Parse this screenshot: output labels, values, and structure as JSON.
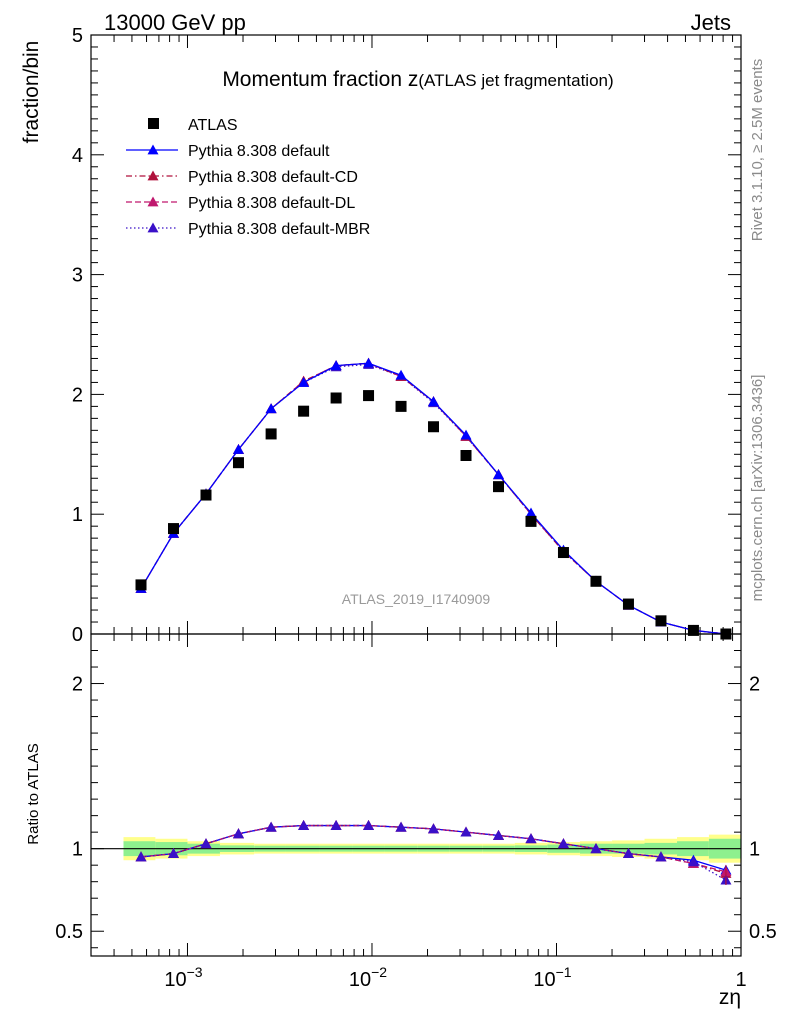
{
  "header": {
    "left": "13000 GeV pp",
    "right": "Jets"
  },
  "side_labels": {
    "rivet": "Rivet 3.1.10, ≥ 2.5M events",
    "mcplots": "mcplots.cern.ch [arXiv:1306.3436]"
  },
  "chart_data": [
    {
      "type": "scatter",
      "title_main": "Momentum fraction z",
      "title_sub": "(ATLAS jet fragmentation)",
      "analysis_label": "ATLAS_2019_I1740909",
      "ylabel": "fraction/bin",
      "xlabel": "zη",
      "xscale": "log",
      "xlim": [
        0.0003,
        1
      ],
      "ylim": [
        0,
        5
      ],
      "yticks": [
        0,
        1,
        2,
        3,
        4,
        5
      ],
      "xticks": [
        0.001,
        0.01,
        0.1,
        1
      ],
      "xtick_labels": [
        "10^-3",
        "10^-2",
        "10^-1",
        "1"
      ],
      "legend_placement": "top-left",
      "x": [
        0.00056,
        0.00084,
        0.00126,
        0.00189,
        0.00284,
        0.00426,
        0.00639,
        0.00958,
        0.01437,
        0.02155,
        0.03233,
        0.0485,
        0.07275,
        0.1091,
        0.1637,
        0.2455,
        0.3683,
        0.5524,
        0.8286
      ],
      "series": [
        {
          "name": "ATLAS",
          "color": "#000000",
          "marker": "square",
          "values": [
            0.41,
            0.88,
            1.16,
            1.43,
            1.67,
            1.86,
            1.97,
            1.99,
            1.9,
            1.73,
            1.49,
            1.23,
            0.94,
            0.68,
            0.44,
            0.25,
            0.11,
            0.03,
            0.0
          ]
        },
        {
          "name": "Pythia 8.308 default",
          "color": "#0000ff",
          "marker": "triangle",
          "line": "solid",
          "values": [
            0.38,
            0.84,
            1.17,
            1.54,
            1.88,
            2.1,
            2.24,
            2.26,
            2.16,
            1.94,
            1.66,
            1.33,
            1.01,
            0.7,
            0.44,
            0.24,
            0.1,
            0.03,
            0.0
          ]
        },
        {
          "name": "Pythia 8.308 default-CD",
          "color": "#b0123c",
          "marker": "triangle",
          "line": "dashdot",
          "values": [
            0.38,
            0.84,
            1.17,
            1.54,
            1.88,
            2.11,
            2.24,
            2.26,
            2.15,
            1.94,
            1.65,
            1.33,
            1.0,
            0.69,
            0.44,
            0.24,
            0.1,
            0.03,
            0.0
          ]
        },
        {
          "name": "Pythia 8.308 default-DL",
          "color": "#c0186e",
          "marker": "triangle",
          "line": "dashed",
          "values": [
            0.38,
            0.84,
            1.17,
            1.54,
            1.88,
            2.11,
            2.24,
            2.26,
            2.15,
            1.94,
            1.65,
            1.33,
            1.0,
            0.69,
            0.44,
            0.24,
            0.1,
            0.03,
            0.0
          ]
        },
        {
          "name": "Pythia 8.308 default-MBR",
          "color": "#3a10c8",
          "marker": "triangle",
          "line": "dotted",
          "values": [
            0.38,
            0.84,
            1.17,
            1.54,
            1.88,
            2.1,
            2.23,
            2.25,
            2.15,
            1.93,
            1.65,
            1.33,
            1.0,
            0.69,
            0.44,
            0.24,
            0.1,
            0.03,
            0.0
          ]
        }
      ]
    },
    {
      "type": "line",
      "ylabel": "Ratio to ATLAS",
      "xscale": "log",
      "xlim": [
        0.0003,
        1
      ],
      "ylim": [
        0.35,
        2.3
      ],
      "yticks": [
        0.5,
        1,
        2
      ],
      "ytick_labels": [
        "0.5",
        "1",
        "2"
      ],
      "band_edges": [
        0.00045,
        0.00067,
        0.001,
        0.0015,
        0.0023,
        0.0034,
        0.0052,
        0.0078,
        0.0117,
        0.0176,
        0.0264,
        0.0396,
        0.0594,
        0.0891,
        0.134,
        0.2,
        0.3,
        0.45,
        0.67,
        1.0
      ],
      "band_yellow_halfwidth": [
        0.07,
        0.06,
        0.045,
        0.035,
        0.03,
        0.03,
        0.03,
        0.03,
        0.03,
        0.03,
        0.03,
        0.03,
        0.035,
        0.04,
        0.045,
        0.05,
        0.06,
        0.07,
        0.085
      ],
      "band_green_halfwidth": [
        0.045,
        0.04,
        0.03,
        0.02,
        0.018,
        0.018,
        0.018,
        0.018,
        0.018,
        0.018,
        0.018,
        0.018,
        0.02,
        0.025,
        0.03,
        0.03,
        0.035,
        0.045,
        0.06
      ],
      "series": [
        {
          "name": "Pythia 8.308 default",
          "color": "#0000ff",
          "line": "solid",
          "values": [
            0.95,
            0.97,
            1.03,
            1.09,
            1.13,
            1.14,
            1.14,
            1.14,
            1.13,
            1.12,
            1.1,
            1.08,
            1.06,
            1.03,
            1.0,
            0.97,
            0.95,
            0.93,
            0.87
          ]
        },
        {
          "name": "Pythia 8.308 default-CD",
          "color": "#b0123c",
          "line": "dashdot",
          "values": [
            0.95,
            0.97,
            1.03,
            1.09,
            1.13,
            1.14,
            1.14,
            1.14,
            1.13,
            1.12,
            1.1,
            1.08,
            1.06,
            1.03,
            1.0,
            0.97,
            0.95,
            0.91,
            0.85
          ]
        },
        {
          "name": "Pythia 8.308 default-DL",
          "color": "#c0186e",
          "line": "dashed",
          "values": [
            0.95,
            0.97,
            1.03,
            1.09,
            1.13,
            1.14,
            1.14,
            1.14,
            1.13,
            1.12,
            1.1,
            1.08,
            1.06,
            1.03,
            1.0,
            0.97,
            0.95,
            0.91,
            0.86
          ]
        },
        {
          "name": "Pythia 8.308 default-MBR",
          "color": "#3a10c8",
          "line": "dotted",
          "values": [
            0.95,
            0.97,
            1.03,
            1.09,
            1.13,
            1.14,
            1.14,
            1.14,
            1.13,
            1.12,
            1.1,
            1.08,
            1.06,
            1.03,
            1.0,
            0.97,
            0.95,
            0.92,
            0.81
          ]
        }
      ]
    }
  ]
}
